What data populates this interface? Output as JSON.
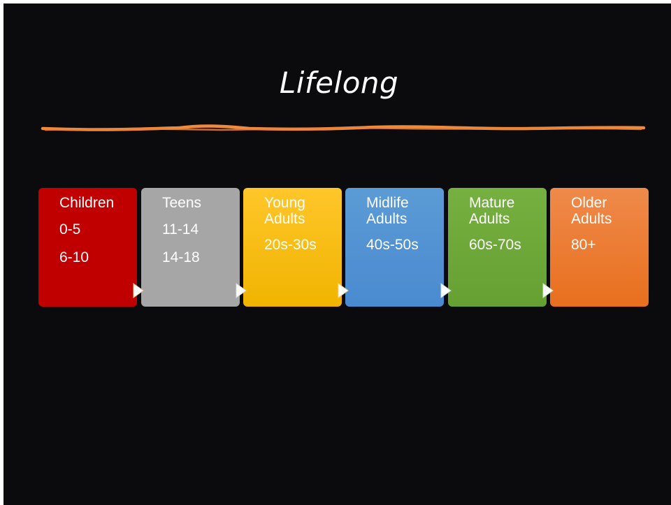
{
  "slide": {
    "title": "Lifelong",
    "accent_color": "#f08a3c"
  },
  "stages": [
    {
      "heading": "Children",
      "ages": [
        "0-5",
        "6-10"
      ],
      "color": "#c00000"
    },
    {
      "heading": "Teens",
      "ages": [
        "11-14",
        "14-18"
      ],
      "color": "#a6a6a6"
    },
    {
      "heading": "Young Adults",
      "ages": [
        "20s-30s"
      ],
      "color": "#ffc000"
    },
    {
      "heading": "Midlife Adults",
      "ages": [
        "40s-50s"
      ],
      "color": "#5b9bd5"
    },
    {
      "heading": "Mature Adults",
      "ages": [
        "60s-70s"
      ],
      "color": "#70ad47"
    },
    {
      "heading": "Older Adults",
      "ages": [
        "80+"
      ],
      "color": "#ed7d31"
    }
  ],
  "arrow_icon": "triangle-right-icon"
}
